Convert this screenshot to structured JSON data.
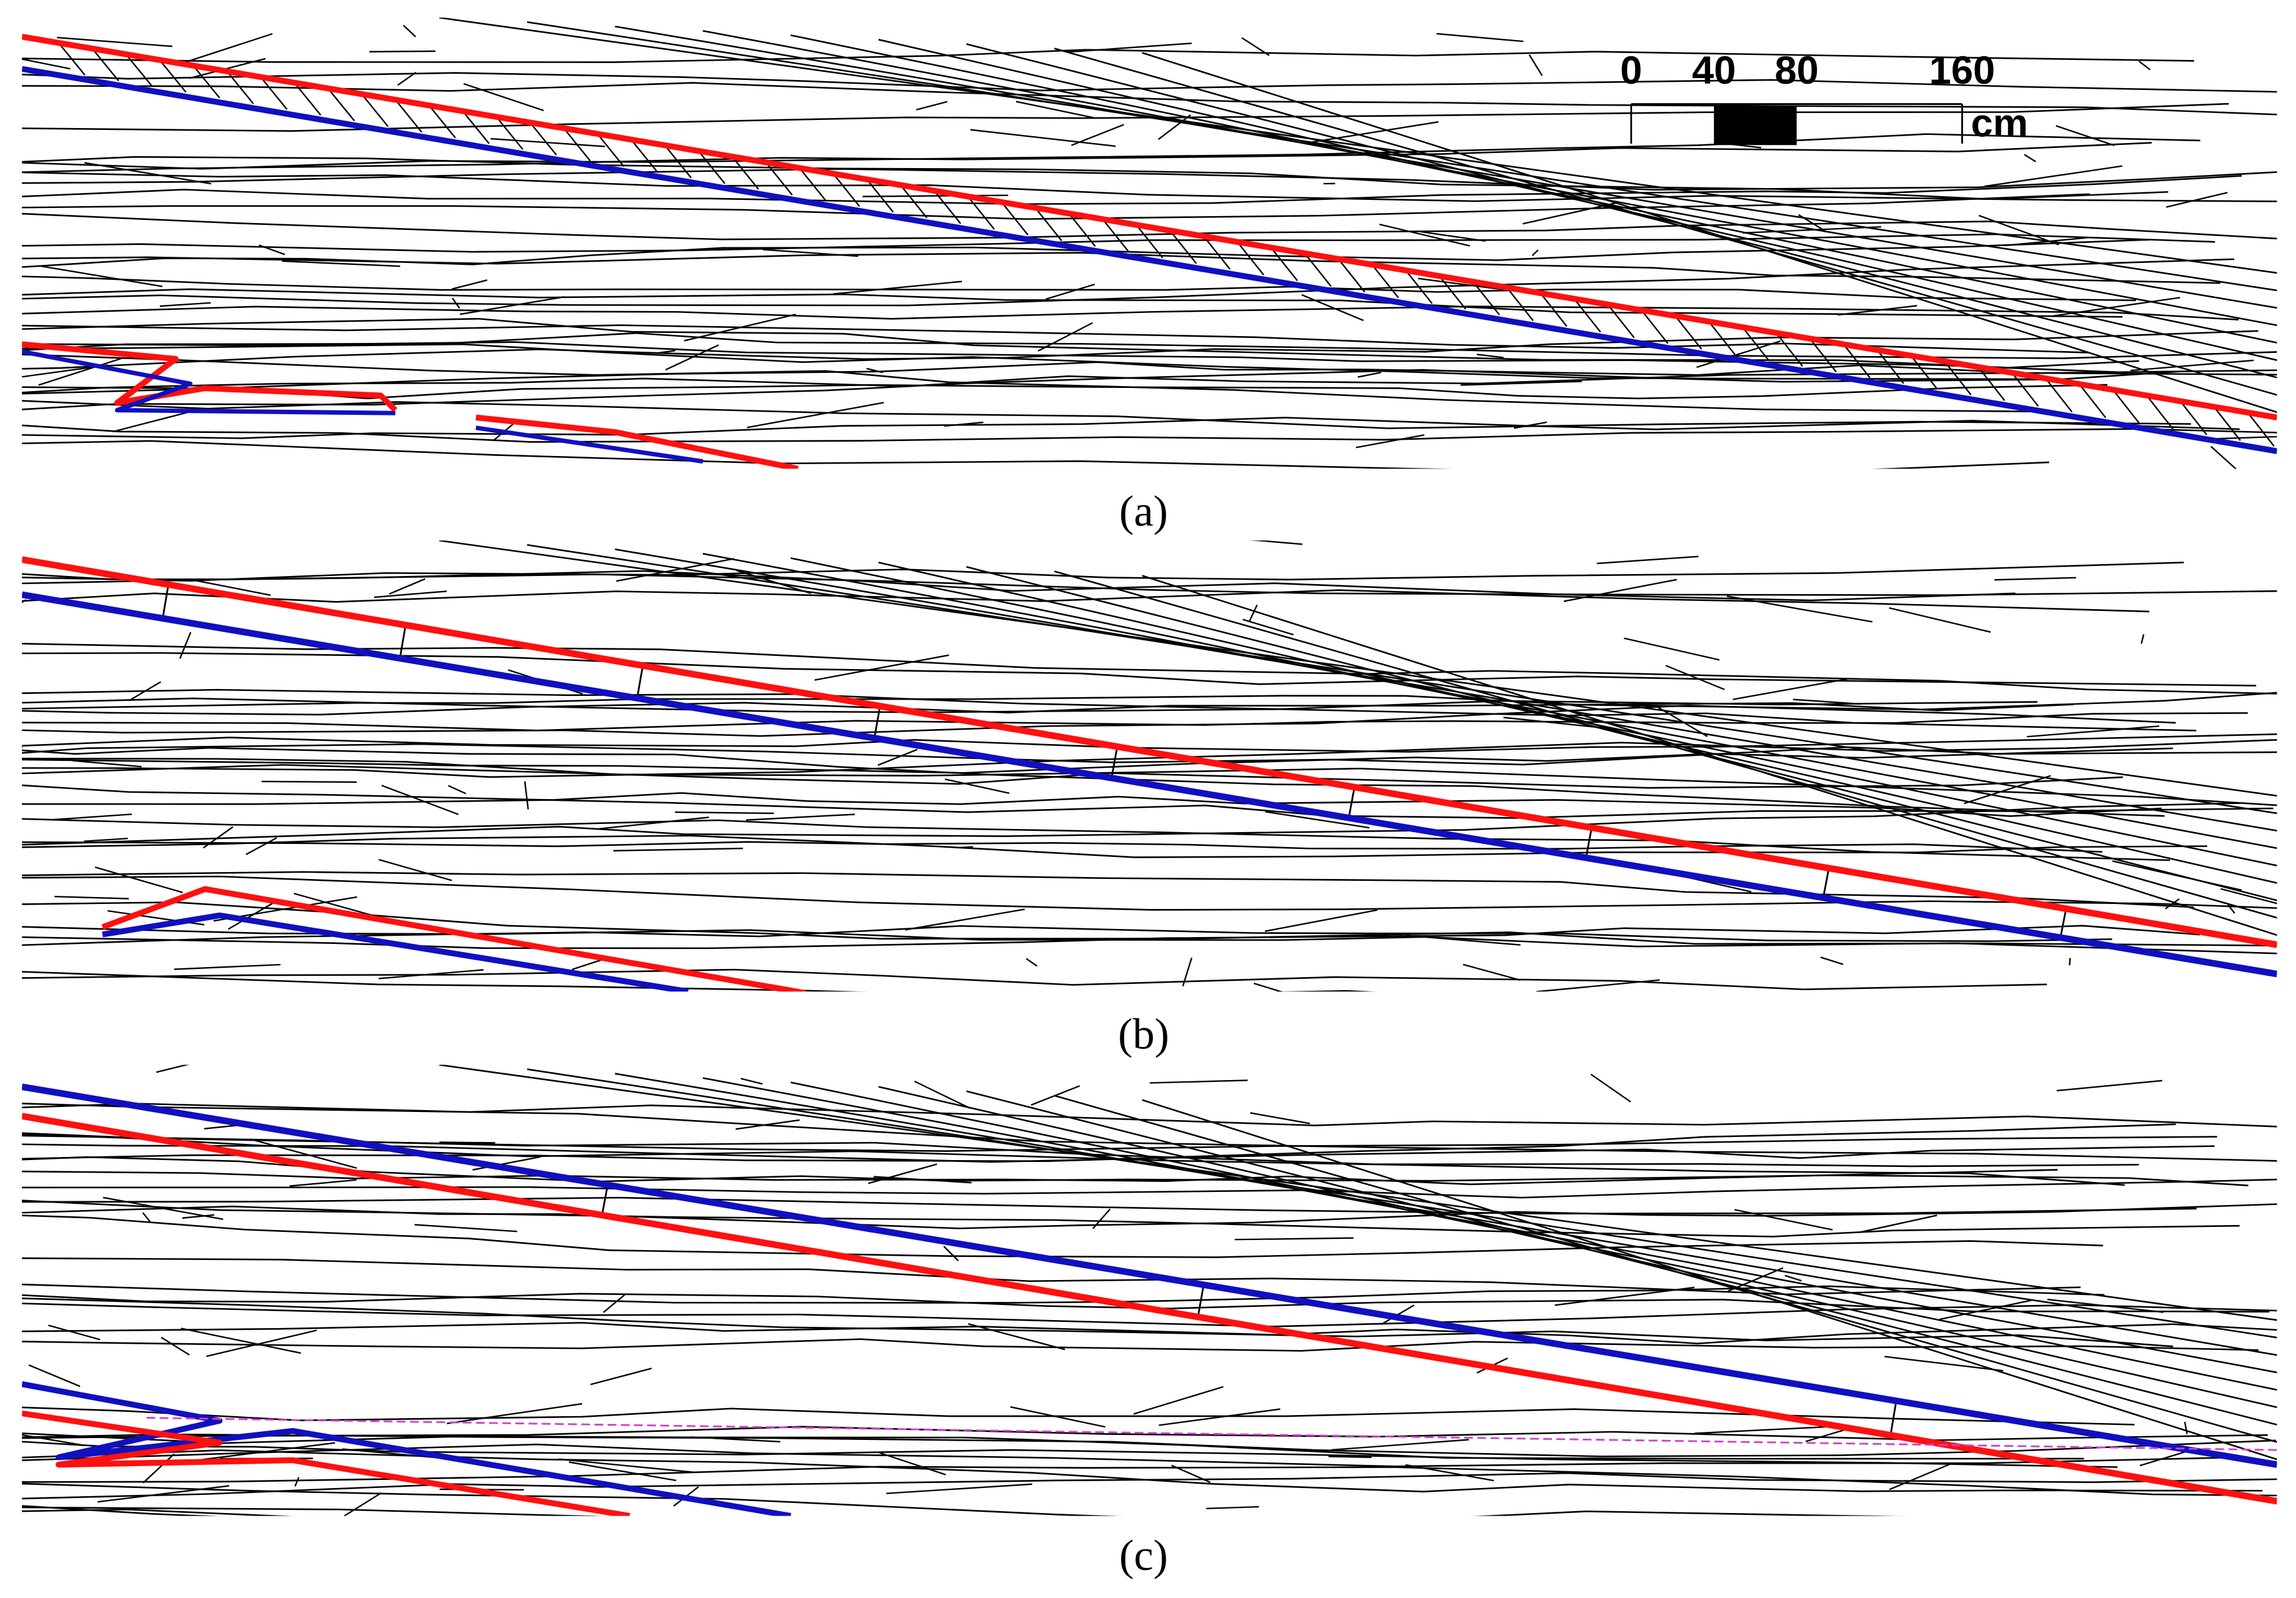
{
  "scale_bar": {
    "labels": [
      0,
      40,
      80,
      160
    ],
    "unit": "cm"
  },
  "panels": [
    {
      "caption": "(a)"
    },
    {
      "caption": "(b)"
    },
    {
      "caption": "(c)"
    }
  ]
}
